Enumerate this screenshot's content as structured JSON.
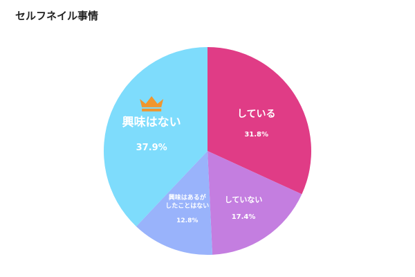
{
  "chart_data": {
    "type": "pie",
    "title": "セルフネイル事情",
    "slices": [
      {
        "label": "している",
        "value": 31.8,
        "value_label": "31.8%",
        "color": "#e03c86"
      },
      {
        "label": "していない",
        "value": 17.4,
        "value_label": "17.4%",
        "color": "#c47ee0"
      },
      {
        "label": "興味はあるがしたことはない",
        "label_lines": [
          "興味はあるが",
          "したことはない"
        ],
        "value": 12.8,
        "value_label": "12.8%",
        "color": "#99b3fb"
      },
      {
        "label": "興味はない",
        "value": 37.9,
        "value_label": "37.9%",
        "color": "#7edcfc",
        "highlight_icon": "crown-icon"
      }
    ],
    "start": "12-o'clock, clockwise",
    "legend": "none"
  },
  "colors": {
    "crown": "#f0962e"
  }
}
